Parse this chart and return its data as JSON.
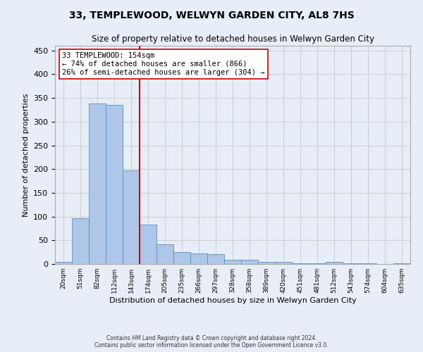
{
  "title": "33, TEMPLEWOOD, WELWYN GARDEN CITY, AL8 7HS",
  "subtitle": "Size of property relative to detached houses in Welwyn Garden City",
  "xlabel": "Distribution of detached houses by size in Welwyn Garden City",
  "ylabel": "Number of detached properties",
  "categories": [
    "20sqm",
    "51sqm",
    "82sqm",
    "112sqm",
    "143sqm",
    "174sqm",
    "205sqm",
    "235sqm",
    "266sqm",
    "297sqm",
    "328sqm",
    "358sqm",
    "389sqm",
    "420sqm",
    "451sqm",
    "481sqm",
    "512sqm",
    "543sqm",
    "574sqm",
    "604sqm",
    "635sqm"
  ],
  "values": [
    5,
    97,
    338,
    335,
    197,
    83,
    42,
    25,
    23,
    21,
    9,
    9,
    5,
    4,
    2,
    1,
    4,
    1,
    1,
    0,
    2
  ],
  "bar_color": "#aec6e8",
  "bar_edge_color": "#5a8fc0",
  "vline_color": "#cc0000",
  "vline_pos": 4.5,
  "annotation_text": "33 TEMPLEWOOD: 154sqm\n← 74% of detached houses are smaller (866)\n26% of semi-detached houses are larger (304) →",
  "annotation_box_color": "#ffffff",
  "annotation_box_edge": "#cc0000",
  "ylim": [
    0,
    460
  ],
  "yticks": [
    0,
    50,
    100,
    150,
    200,
    250,
    300,
    350,
    400,
    450
  ],
  "grid_color": "#cccccc",
  "background_color": "#e8eef7",
  "footer_line1": "Contains HM Land Registry data © Crown copyright and database right 2024.",
  "footer_line2": "Contains public sector information licensed under the Open Government Licence v3.0."
}
